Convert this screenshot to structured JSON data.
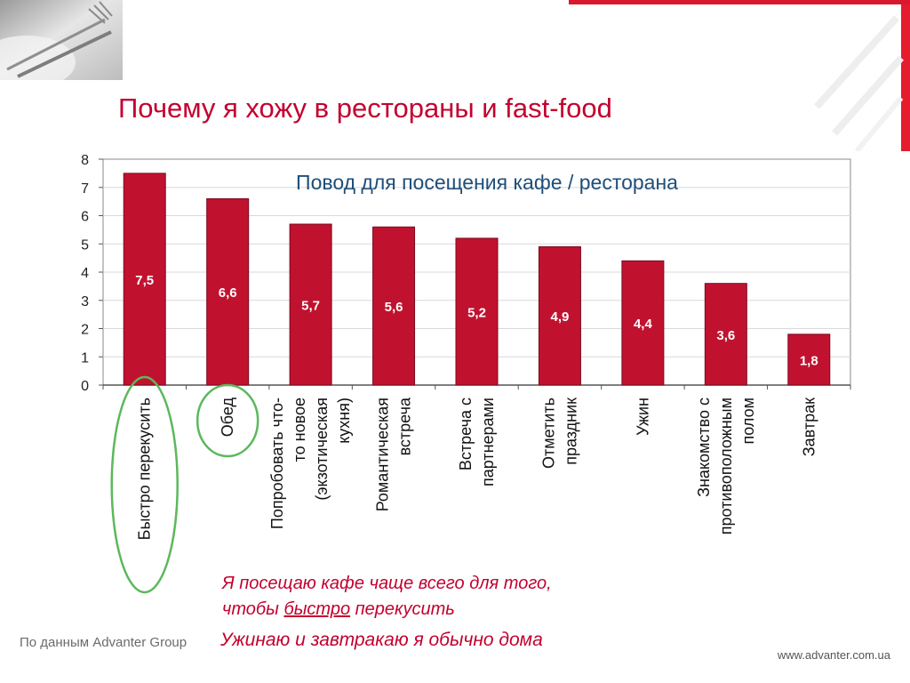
{
  "slide": {
    "title": "Почему я хожу в рестораны и fast-food",
    "note_line1": "Я посещаю кафе чаще всего для того,",
    "note_line2_before": "чтобы ",
    "note_line2_underlined": "быстро",
    "note_line2_after": " перекусить",
    "note_bottom": "Ужинаю и завтракаю я обычно дома",
    "source": "По данным Advanter Group",
    "website": "www.advanter.com.ua",
    "photo_icon": "fork-knife-plate-photo",
    "highlight_icon": "circle-highlight",
    "colors": {
      "accent": "#c3002f",
      "bar": "#c0122f",
      "highlight": "#5cb85c",
      "text": "#333333"
    }
  },
  "chart_data": {
    "type": "bar",
    "title": "Повод для посещения кафе / ресторана",
    "categories": [
      [
        "Быстро перекусить"
      ],
      [
        "Обед"
      ],
      [
        "Попробовать что-",
        "то новое",
        "(экзотическая",
        "кухня)"
      ],
      [
        "Романтическая",
        "встреча"
      ],
      [
        "Встреча с",
        "партнерами"
      ],
      [
        "Отметить",
        "праздник"
      ],
      [
        "Ужин"
      ],
      [
        "Знакомство с",
        "противоположным",
        "полом"
      ],
      [
        "Завтрак"
      ]
    ],
    "values": [
      7.5,
      6.6,
      5.7,
      5.6,
      5.2,
      4.9,
      4.4,
      3.6,
      1.8
    ],
    "value_labels": [
      "7,5",
      "6,6",
      "5,7",
      "5,6",
      "5,2",
      "4,9",
      "4,4",
      "3,6",
      "1,8"
    ],
    "ylim": [
      0,
      8
    ],
    "yticks": [
      0,
      1,
      2,
      3,
      4,
      5,
      6,
      7,
      8
    ],
    "grid": true,
    "highlighted_categories": [
      0,
      1
    ]
  }
}
